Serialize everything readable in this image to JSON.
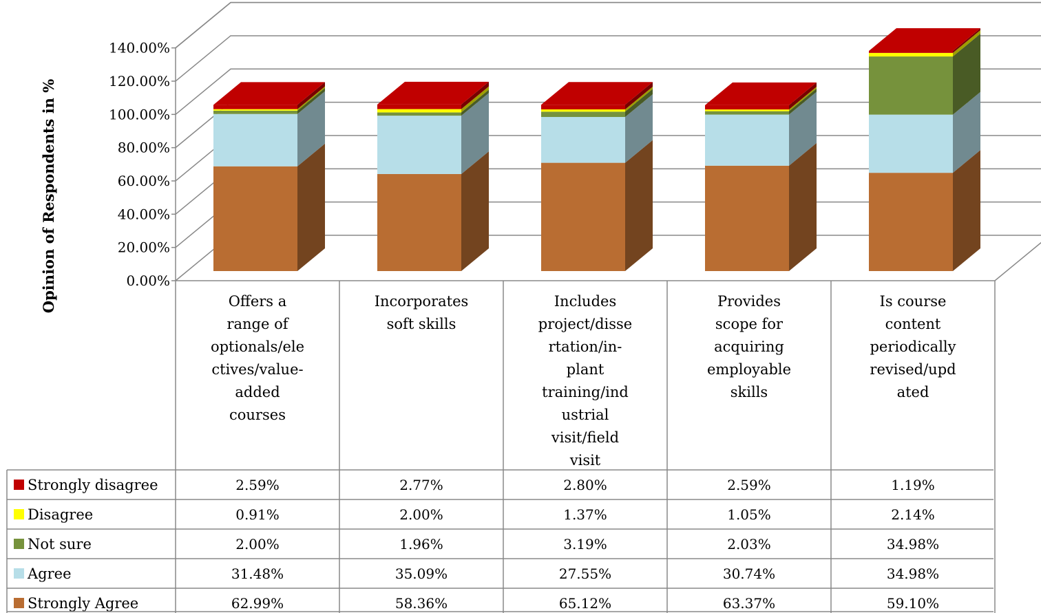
{
  "chart_data": {
    "type": "bar",
    "stacked": true,
    "three_d": true,
    "with_data_table": true,
    "ylabel": "Opinion of Respondents in %",
    "ylim": [
      0,
      140
    ],
    "yticks": [
      "0.00%",
      "20.00%",
      "40.00%",
      "60.00%",
      "80.00%",
      "100.00%",
      "120.00%",
      "140.00%"
    ],
    "grid": true,
    "categories": [
      [
        "Offers a",
        "range of",
        "optionals/ele",
        "ctives/value-",
        "added",
        "courses"
      ],
      [
        "Incorporates",
        "soft skills"
      ],
      [
        "Includes",
        "project/disse",
        "rtation/in-",
        "plant",
        "training/ind",
        "ustrial",
        "visit/field",
        "visit"
      ],
      [
        "Provides",
        "scope for",
        "acquiring",
        "employable",
        "skills"
      ],
      [
        "Is course",
        "content",
        "periodically",
        "revised/upd",
        "ated"
      ]
    ],
    "series": [
      {
        "name": "Strongly disagree",
        "color": "#c00000",
        "values": [
          2.59,
          2.77,
          2.8,
          2.59,
          1.19
        ],
        "labels": [
          "2.59%",
          "2.77%",
          "2.80%",
          "2.59%",
          "1.19%"
        ]
      },
      {
        "name": "Disagree",
        "color": "#ffff00",
        "values": [
          0.91,
          2.0,
          1.37,
          1.05,
          2.14
        ],
        "labels": [
          "0.91%",
          "2.00%",
          "1.37%",
          "1.05%",
          "2.14%"
        ]
      },
      {
        "name": "Not sure",
        "color": "#76923c",
        "values": [
          2.0,
          1.96,
          3.19,
          2.03,
          34.98
        ],
        "labels": [
          "2.00%",
          "1.96%",
          "3.19%",
          "2.03%",
          "34.98%"
        ]
      },
      {
        "name": "Agree",
        "color": "#b7dee8",
        "values": [
          31.48,
          35.09,
          27.55,
          30.74,
          34.98
        ],
        "labels": [
          "31.48%",
          "35.09%",
          "27.55%",
          "30.74%",
          "34.98%"
        ]
      },
      {
        "name": "Strongly Agree",
        "color": "#b96d32",
        "values": [
          62.99,
          58.36,
          65.12,
          63.37,
          59.1
        ],
        "labels": [
          "62.99%",
          "58.36%",
          "65.12%",
          "63.37%",
          "59.10%"
        ]
      }
    ],
    "stack_order": [
      "Strongly Agree",
      "Agree",
      "Not sure",
      "Disagree",
      "Strongly disagree"
    ],
    "legend_position": "data-table"
  }
}
